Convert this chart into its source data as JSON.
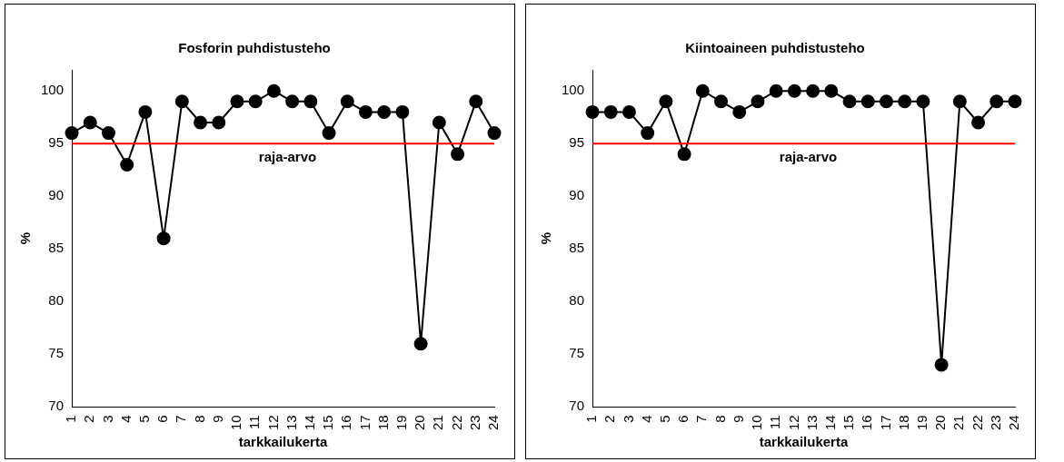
{
  "chart_data": [
    {
      "type": "line",
      "title": "Fosforin puhdistusteho",
      "xlabel": "tarkkailukerta",
      "ylabel": "%",
      "categories": [
        "1",
        "2",
        "3",
        "4",
        "5",
        "6",
        "7",
        "8",
        "9",
        "10",
        "11",
        "12",
        "13",
        "14",
        "15",
        "16",
        "17",
        "18",
        "19",
        "20",
        "21",
        "22",
        "23",
        "24"
      ],
      "series": [
        {
          "color": "#000000",
          "values": [
            96,
            97,
            96,
            93,
            98,
            86,
            99,
            97,
            97,
            99,
            99,
            100,
            99,
            99,
            96,
            99,
            98,
            98,
            98,
            76,
            97,
            94,
            99,
            96
          ]
        }
      ],
      "ylim": [
        70,
        102
      ],
      "yticks": [
        70,
        75,
        80,
        85,
        90,
        95,
        100
      ],
      "grid": false,
      "legend": false,
      "marker": "circle",
      "line_style": "solid",
      "ref_lines": [
        {
          "axis": "y",
          "value": 95,
          "label": "raja-arvo",
          "color": "#ff0000"
        }
      ]
    },
    {
      "type": "line",
      "title": "Kiintoaineen puhdistusteho",
      "xlabel": "tarkkailukerta",
      "ylabel": "%",
      "categories": [
        "1",
        "2",
        "3",
        "4",
        "5",
        "6",
        "7",
        "8",
        "9",
        "10",
        "11",
        "12",
        "13",
        "14",
        "15",
        "16",
        "17",
        "18",
        "19",
        "20",
        "21",
        "22",
        "23",
        "24"
      ],
      "series": [
        {
          "color": "#000000",
          "values": [
            98,
            98,
            98,
            96,
            99,
            94,
            100,
            99,
            98,
            99,
            100,
            100,
            100,
            100,
            99,
            99,
            99,
            99,
            99,
            74,
            99,
            97,
            99,
            99
          ]
        }
      ],
      "ylim": [
        70,
        102
      ],
      "yticks": [
        70,
        75,
        80,
        85,
        90,
        95,
        100
      ],
      "grid": false,
      "legend": false,
      "marker": "circle",
      "line_style": "solid",
      "ref_lines": [
        {
          "axis": "y",
          "value": 95,
          "label": "raja-arvo",
          "color": "#ff0000"
        }
      ]
    }
  ]
}
